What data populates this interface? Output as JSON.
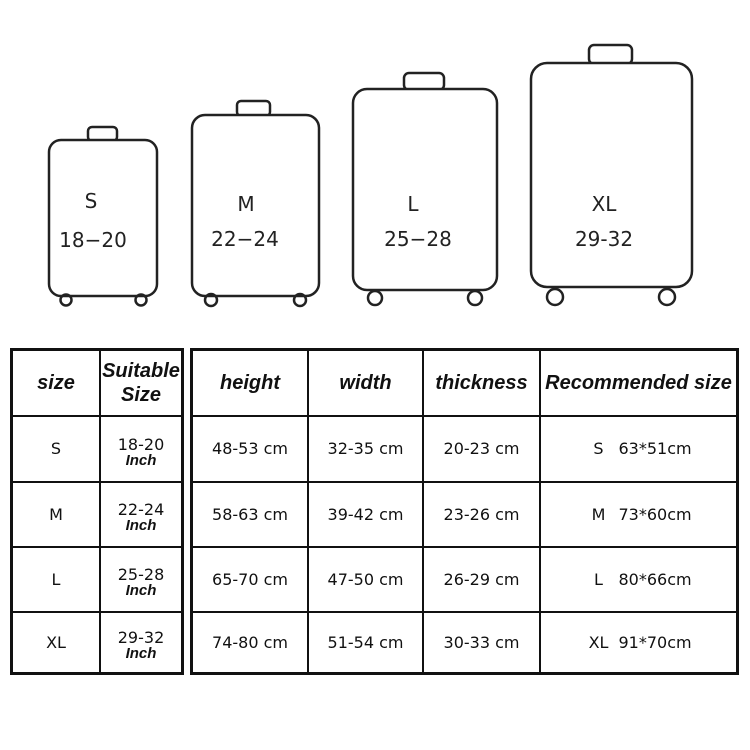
{
  "suitcases": [
    {
      "size": "S",
      "range": "18−20"
    },
    {
      "size": "M",
      "range": "22−24"
    },
    {
      "size": "L",
      "range": "25−28"
    },
    {
      "size": "XL",
      "range": "29-32"
    }
  ],
  "left_table": {
    "headers": [
      "size",
      "Suitable Size"
    ],
    "unit": "Inch",
    "rows": [
      {
        "size": "S",
        "range": "18-20"
      },
      {
        "size": "M",
        "range": "22-24"
      },
      {
        "size": "L",
        "range": "25-28"
      },
      {
        "size": "XL",
        "range": "29-32"
      }
    ]
  },
  "right_table": {
    "headers": [
      "height",
      "width",
      "thickness",
      "Recommended size"
    ],
    "rows": [
      {
        "height": "48-53 cm",
        "width": "32-35 cm",
        "thickness": "20-23 cm",
        "rec_size": "S",
        "rec_dim": "63*51cm"
      },
      {
        "height": "58-63 cm",
        "width": "39-42 cm",
        "thickness": "23-26 cm",
        "rec_size": "M",
        "rec_dim": "73*60cm"
      },
      {
        "height": "65-70 cm",
        "width": "47-50 cm",
        "thickness": "26-29 cm",
        "rec_size": "L",
        "rec_dim": "80*66cm"
      },
      {
        "height": "74-80 cm",
        "width": "51-54 cm",
        "thickness": "30-33 cm",
        "rec_size": "XL",
        "rec_dim": "91*70cm"
      }
    ]
  }
}
